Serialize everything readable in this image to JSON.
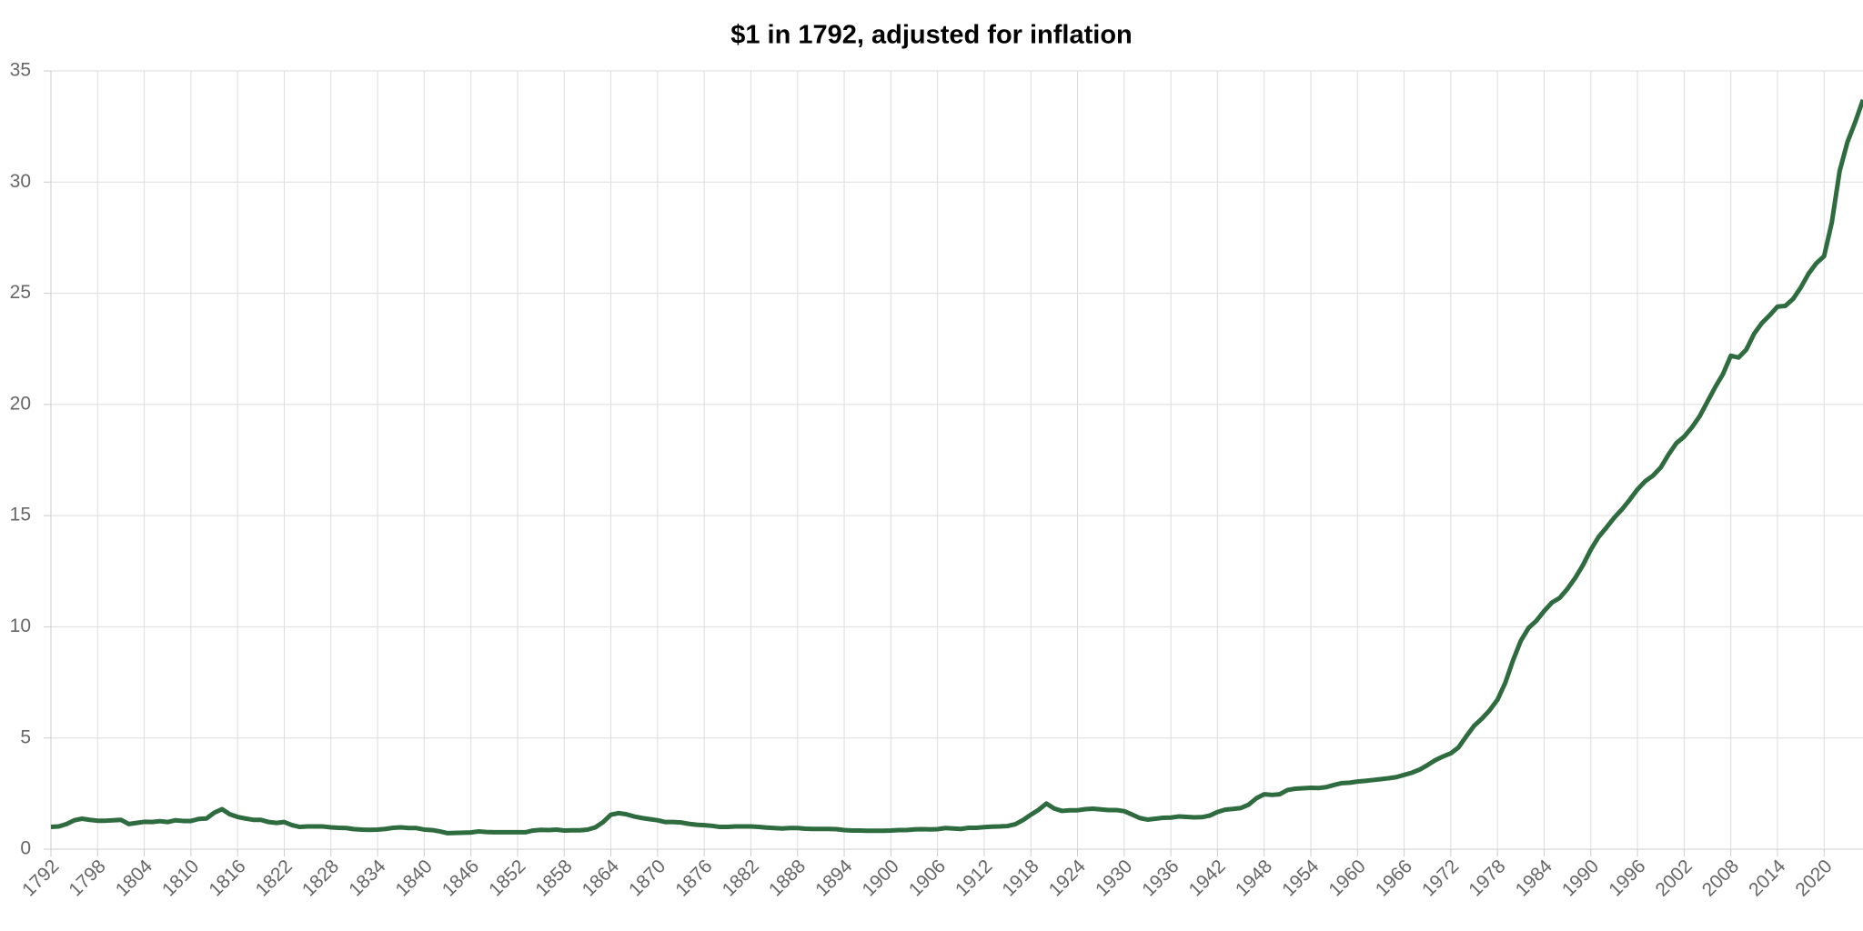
{
  "chart_data": {
    "type": "line",
    "title": "$1 in 1792, adjusted for inflation",
    "color": "#2e6b3f",
    "grid": true,
    "xlim": [
      1792,
      2025
    ],
    "ylim": [
      0,
      35
    ],
    "yticks": [
      0,
      5,
      10,
      15,
      20,
      25,
      30,
      35
    ],
    "xticks": [
      1792,
      1798,
      1804,
      1810,
      1816,
      1822,
      1828,
      1834,
      1840,
      1846,
      1852,
      1858,
      1864,
      1870,
      1876,
      1882,
      1888,
      1894,
      1900,
      1906,
      1912,
      1918,
      1924,
      1930,
      1936,
      1942,
      1948,
      1954,
      1960,
      1966,
      1972,
      1978,
      1984,
      1990,
      1996,
      2002,
      2008,
      2014,
      2020
    ],
    "x": [
      1792,
      1793,
      1794,
      1795,
      1796,
      1797,
      1798,
      1799,
      1800,
      1801,
      1802,
      1803,
      1804,
      1805,
      1806,
      1807,
      1808,
      1809,
      1810,
      1811,
      1812,
      1813,
      1814,
      1815,
      1816,
      1817,
      1818,
      1819,
      1820,
      1821,
      1822,
      1823,
      1824,
      1825,
      1826,
      1827,
      1828,
      1829,
      1830,
      1831,
      1832,
      1833,
      1834,
      1835,
      1836,
      1837,
      1838,
      1839,
      1840,
      1841,
      1842,
      1843,
      1844,
      1845,
      1846,
      1847,
      1848,
      1849,
      1850,
      1851,
      1852,
      1853,
      1854,
      1855,
      1856,
      1857,
      1858,
      1859,
      1860,
      1861,
      1862,
      1863,
      1864,
      1865,
      1866,
      1867,
      1868,
      1869,
      1870,
      1871,
      1872,
      1873,
      1874,
      1875,
      1876,
      1877,
      1878,
      1879,
      1880,
      1881,
      1882,
      1883,
      1884,
      1885,
      1886,
      1887,
      1888,
      1889,
      1890,
      1891,
      1892,
      1893,
      1894,
      1895,
      1896,
      1897,
      1898,
      1899,
      1900,
      1901,
      1902,
      1903,
      1904,
      1905,
      1906,
      1907,
      1908,
      1909,
      1910,
      1911,
      1912,
      1913,
      1914,
      1915,
      1916,
      1917,
      1918,
      1919,
      1920,
      1921,
      1922,
      1923,
      1924,
      1925,
      1926,
      1927,
      1928,
      1929,
      1930,
      1931,
      1932,
      1933,
      1934,
      1935,
      1936,
      1937,
      1938,
      1939,
      1940,
      1941,
      1942,
      1943,
      1944,
      1945,
      1946,
      1947,
      1948,
      1949,
      1950,
      1951,
      1952,
      1953,
      1954,
      1955,
      1956,
      1957,
      1958,
      1959,
      1960,
      1961,
      1962,
      1963,
      1964,
      1965,
      1966,
      1967,
      1968,
      1969,
      1970,
      1971,
      1972,
      1973,
      1974,
      1975,
      1976,
      1977,
      1978,
      1979,
      1980,
      1981,
      1982,
      1983,
      1984,
      1985,
      1986,
      1987,
      1988,
      1989,
      1990,
      1991,
      1992,
      1993,
      1994,
      1995,
      1996,
      1997,
      1998,
      1999,
      2000,
      2001,
      2002,
      2003,
      2004,
      2005,
      2006,
      2007,
      2008,
      2009,
      2010,
      2011,
      2012,
      2013,
      2014,
      2015,
      2016,
      2017,
      2018,
      2019,
      2020,
      2021,
      2022,
      2023,
      2024,
      2025
    ],
    "values": [
      1.0,
      1.02,
      1.13,
      1.3,
      1.37,
      1.32,
      1.28,
      1.28,
      1.3,
      1.32,
      1.13,
      1.18,
      1.23,
      1.22,
      1.26,
      1.22,
      1.3,
      1.27,
      1.27,
      1.36,
      1.38,
      1.64,
      1.8,
      1.57,
      1.45,
      1.38,
      1.32,
      1.32,
      1.22,
      1.18,
      1.22,
      1.08,
      1.0,
      1.02,
      1.02,
      1.02,
      0.98,
      0.96,
      0.95,
      0.9,
      0.88,
      0.87,
      0.88,
      0.91,
      0.96,
      0.98,
      0.95,
      0.95,
      0.88,
      0.86,
      0.8,
      0.72,
      0.73,
      0.74,
      0.75,
      0.8,
      0.77,
      0.76,
      0.76,
      0.76,
      0.76,
      0.76,
      0.84,
      0.87,
      0.86,
      0.88,
      0.84,
      0.85,
      0.85,
      0.88,
      0.98,
      1.22,
      1.55,
      1.62,
      1.57,
      1.47,
      1.4,
      1.35,
      1.3,
      1.22,
      1.22,
      1.2,
      1.14,
      1.1,
      1.08,
      1.05,
      1.0,
      1.0,
      1.02,
      1.02,
      1.02,
      1.0,
      0.97,
      0.95,
      0.93,
      0.95,
      0.95,
      0.92,
      0.91,
      0.91,
      0.91,
      0.9,
      0.86,
      0.84,
      0.84,
      0.83,
      0.83,
      0.83,
      0.84,
      0.86,
      0.86,
      0.89,
      0.9,
      0.89,
      0.9,
      0.95,
      0.93,
      0.91,
      0.96,
      0.96,
      0.99,
      1.01,
      1.02,
      1.04,
      1.12,
      1.31,
      1.55,
      1.77,
      2.05,
      1.83,
      1.72,
      1.75,
      1.75,
      1.8,
      1.82,
      1.79,
      1.76,
      1.76,
      1.71,
      1.56,
      1.4,
      1.33,
      1.37,
      1.41,
      1.42,
      1.47,
      1.45,
      1.43,
      1.44,
      1.51,
      1.67,
      1.78,
      1.81,
      1.85,
      2.0,
      2.29,
      2.47,
      2.44,
      2.47,
      2.66,
      2.72,
      2.74,
      2.76,
      2.75,
      2.79,
      2.89,
      2.97,
      2.99,
      3.04,
      3.07,
      3.11,
      3.15,
      3.19,
      3.24,
      3.34,
      3.44,
      3.58,
      3.78,
      4.0,
      4.17,
      4.31,
      4.58,
      5.08,
      5.55,
      5.87,
      6.25,
      6.72,
      7.48,
      8.49,
      9.37,
      9.95,
      10.27,
      10.71,
      11.09,
      11.3,
      11.71,
      12.2,
      12.78,
      13.47,
      14.04,
      14.46,
      14.9,
      15.28,
      15.71,
      16.18,
      16.55,
      16.8,
      17.17,
      17.75,
      18.26,
      18.55,
      18.97,
      19.47,
      20.13,
      20.78,
      21.37,
      22.19,
      22.11,
      22.47,
      23.18,
      23.66,
      24.01,
      24.4,
      24.43,
      24.74,
      25.26,
      25.88,
      26.35,
      26.67,
      28.2,
      30.5,
      31.8,
      32.7,
      33.7
    ]
  }
}
